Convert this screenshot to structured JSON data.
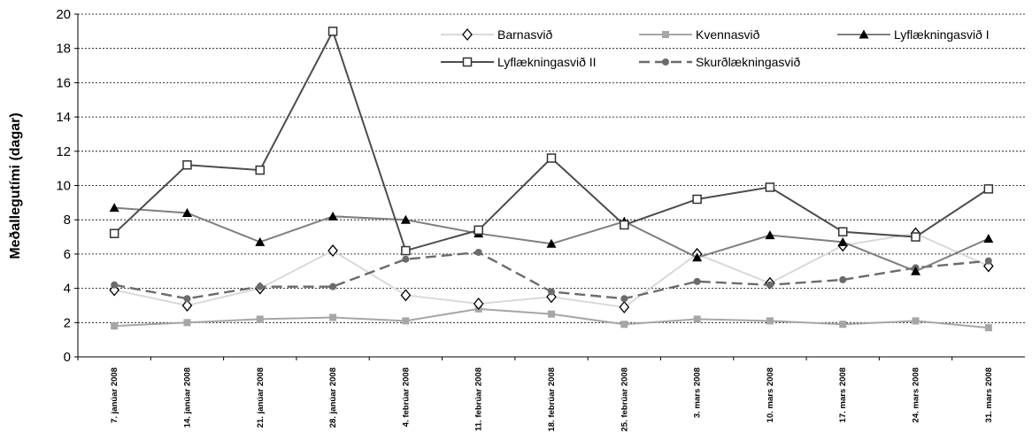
{
  "chart_data": {
    "type": "line",
    "ylabel": "Meðallegutími (dagar)",
    "xlabel": "",
    "title": "",
    "ylim": [
      0,
      20
    ],
    "yticks": [
      0,
      2,
      4,
      6,
      8,
      10,
      12,
      14,
      16,
      18,
      20
    ],
    "grid": "horizontal-dashed",
    "legend_position": "top-right",
    "categories": [
      "7. janúar 2008",
      "14. janúar 2008",
      "21. janúar 2008",
      "28. janúar 2008",
      "4. febrúar 2008",
      "11. febrúar 2008",
      "18. febrúar 2008",
      "25. febrúar 2008",
      "3. mars 2008",
      "10. mars 2008",
      "17. mars 2008",
      "24. mars 2008",
      "31. mars 2008"
    ],
    "series": [
      {
        "name": "Barnasvið",
        "color": "#d9d9d9",
        "marker": "diamond-open",
        "dash": "solid",
        "values": [
          3.9,
          3.0,
          4.0,
          6.2,
          3.6,
          3.1,
          3.5,
          2.9,
          6.0,
          4.3,
          6.5,
          7.2,
          5.3
        ]
      },
      {
        "name": "Kvennasvið",
        "color": "#a6a6a6",
        "marker": "square-filled",
        "dash": "solid",
        "values": [
          1.8,
          2.0,
          2.2,
          2.3,
          2.1,
          2.8,
          2.5,
          1.9,
          2.2,
          2.1,
          1.9,
          2.1,
          1.7
        ]
      },
      {
        "name": "Lyflækningasvið I",
        "color": "#7f7f7f",
        "marker": "triangle-filled",
        "dash": "solid",
        "values": [
          8.7,
          8.4,
          6.7,
          8.2,
          8.0,
          7.2,
          6.6,
          7.9,
          5.8,
          7.1,
          6.7,
          5.0,
          6.9
        ]
      },
      {
        "name": "Lyflækningasvið II",
        "color": "#4d4d4d",
        "marker": "square-open",
        "dash": "solid",
        "values": [
          7.2,
          11.2,
          10.9,
          19.0,
          6.2,
          7.4,
          11.6,
          7.7,
          9.2,
          9.9,
          7.3,
          7.0,
          9.8
        ]
      },
      {
        "name": "Skurðlækningasvið",
        "color": "#6b6b6b",
        "marker": "circle-filled",
        "dash": "dashed",
        "values": [
          4.2,
          3.4,
          4.1,
          4.1,
          5.7,
          6.1,
          3.8,
          3.4,
          4.4,
          4.2,
          4.5,
          5.2,
          5.6
        ]
      }
    ]
  }
}
